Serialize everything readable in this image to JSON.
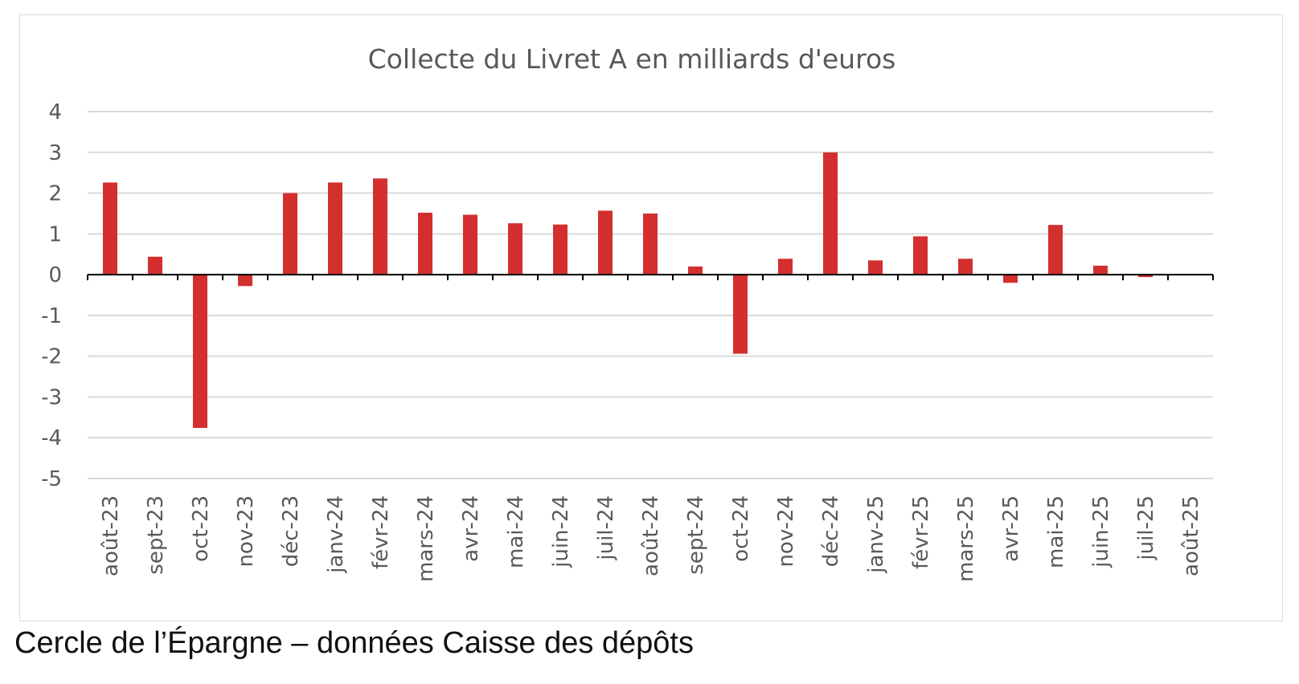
{
  "caption": "Cercle de l’Épargne – données Caisse des dépôts",
  "chart_data": {
    "type": "bar",
    "title": "Collecte du Livret A en milliards d'euros",
    "xlabel": "",
    "ylabel": "",
    "ylim": [
      -5,
      4
    ],
    "yticks": [
      4,
      3,
      2,
      1,
      0,
      -1,
      -2,
      -3,
      -4,
      -5
    ],
    "grid": true,
    "legend": "none",
    "bar_color": "#d32f2f",
    "categories": [
      "août-23",
      "sept-23",
      "oct-23",
      "nov-23",
      "déc-23",
      "janv-24",
      "févr-24",
      "mars-24",
      "avr-24",
      "mai-24",
      "juin-24",
      "juil-24",
      "août-24",
      "sept-24",
      "oct-24",
      "nov-24",
      "déc-24",
      "janv-25",
      "févr-25",
      "mars-25",
      "avr-25",
      "mai-25",
      "juin-25",
      "juil-25",
      "août-25"
    ],
    "values": [
      2.26,
      0.44,
      -3.76,
      -0.28,
      2.0,
      2.26,
      2.36,
      1.52,
      1.47,
      1.26,
      1.23,
      1.57,
      1.5,
      0.2,
      -1.94,
      0.39,
      3.0,
      0.35,
      0.94,
      0.39,
      -0.2,
      1.22,
      0.22,
      -0.06,
      0.0
    ]
  }
}
